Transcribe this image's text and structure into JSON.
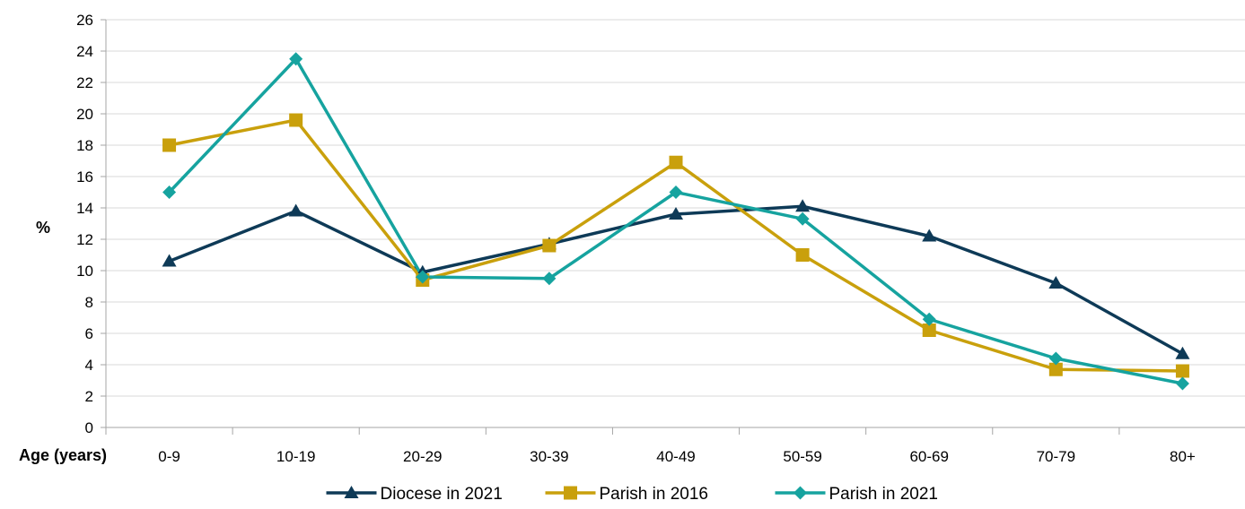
{
  "chart_data": {
    "type": "line",
    "title": "",
    "xlabel": "Age (years)",
    "ylabel": "%",
    "categories": [
      "0-9",
      "10-19",
      "20-29",
      "30-39",
      "40-49",
      "50-59",
      "60-69",
      "70-79",
      "80+"
    ],
    "ylim": [
      0,
      26
    ],
    "yticks": [
      0,
      2,
      4,
      6,
      8,
      10,
      12,
      14,
      16,
      18,
      20,
      22,
      24,
      26
    ],
    "grid": true,
    "legend_position": "bottom",
    "series": [
      {
        "name": "Diocese in 2021",
        "color": "#0e3a57",
        "marker": "triangle",
        "values": [
          10.6,
          13.8,
          9.9,
          11.7,
          13.6,
          14.1,
          12.2,
          9.2,
          4.7
        ]
      },
      {
        "name": "Parish in 2016",
        "color": "#c9a00c",
        "marker": "square",
        "values": [
          18.0,
          19.6,
          9.4,
          11.6,
          16.9,
          11.0,
          6.2,
          3.7,
          3.6
        ]
      },
      {
        "name": "Parish in 2021",
        "color": "#16a39f",
        "marker": "diamond",
        "values": [
          15.0,
          23.5,
          9.6,
          9.5,
          15.0,
          13.3,
          6.9,
          4.4,
          2.8
        ]
      }
    ]
  }
}
